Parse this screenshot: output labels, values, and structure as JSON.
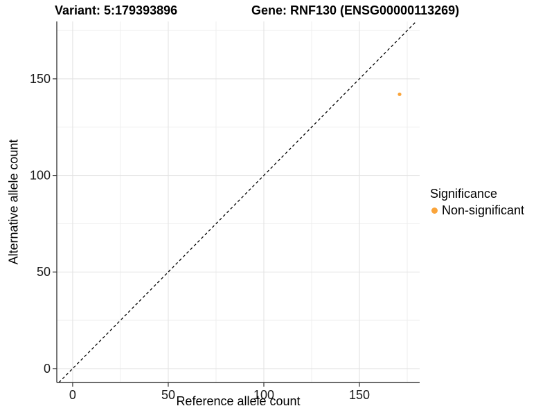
{
  "chart_data": {
    "type": "scatter",
    "titles": {
      "left": "Variant: 5:179393896",
      "right": "Gene: RNF130 (ENSG00000113269)"
    },
    "xlabel": "Reference allele count",
    "ylabel": "Alternative allele count",
    "xlim": [
      -8.3,
      181.5
    ],
    "ylim": [
      -7.2,
      179.7
    ],
    "x_ticks": [
      0,
      50,
      100,
      150
    ],
    "y_ticks": [
      0,
      50,
      100,
      150
    ],
    "x_minor_ticks": [
      25,
      75,
      125,
      175
    ],
    "y_minor_ticks": [
      25,
      75,
      125,
      175
    ],
    "grid": true,
    "reference_line": {
      "type": "identity",
      "slope": 1,
      "intercept": 0,
      "style": "dashed",
      "color": "#000000"
    },
    "series": [
      {
        "name": "Non-significant",
        "color": "#FAA43A",
        "points": [
          {
            "x": 171,
            "y": 142
          }
        ]
      }
    ],
    "legend": {
      "title": "Significance",
      "position": "right",
      "entries": [
        {
          "label": "Non-significant",
          "color": "#FAA43A"
        }
      ]
    },
    "colors": {
      "grid_major": "#E3E3E3",
      "grid_minor": "#EDEDED",
      "axis_line": "#3C3C3C",
      "tick_mark": "#333333",
      "tick_label": "#1A1A1A",
      "point": "#FAA43A"
    }
  }
}
